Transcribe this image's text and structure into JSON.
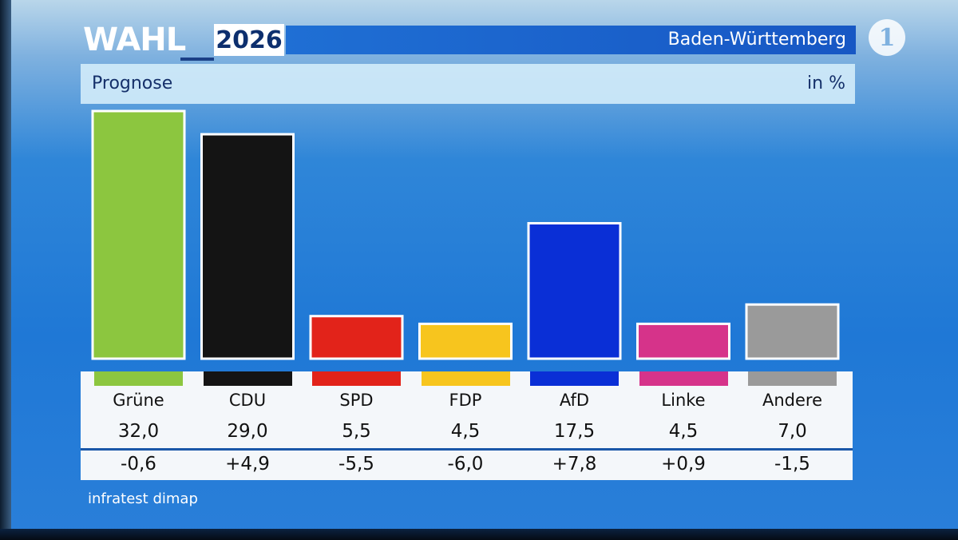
{
  "header": {
    "wahl": "WAHL",
    "year": "2026",
    "region": "Baden-Württemberg",
    "channel_logo_text": "1"
  },
  "subheader": {
    "title": "Prognose",
    "unit": "in %"
  },
  "chart_data": {
    "type": "bar",
    "title": "Prognose",
    "ylabel": "in %",
    "categories": [
      "Grüne",
      "CDU",
      "SPD",
      "FDP",
      "AfD",
      "Linke",
      "Andere"
    ],
    "values": [
      32.0,
      29.0,
      5.5,
      4.5,
      17.5,
      4.5,
      7.0
    ],
    "value_labels": [
      "32,0",
      "29,0",
      "5,5",
      "4,5",
      "17,5",
      "4,5",
      "7,0"
    ],
    "changes": [
      "-0,6",
      "+4,9",
      "-5,5",
      "-6,0",
      "+7,8",
      "+0,9",
      "-1,5"
    ],
    "colors": [
      "#8cc63f",
      "#141414",
      "#e2231a",
      "#f7c51e",
      "#0a2fd6",
      "#d6338a",
      "#9a9a9a"
    ],
    "ylim": [
      0,
      32.0
    ],
    "grid": false,
    "legend": "none"
  },
  "footer": {
    "source": "infratest dimap"
  }
}
